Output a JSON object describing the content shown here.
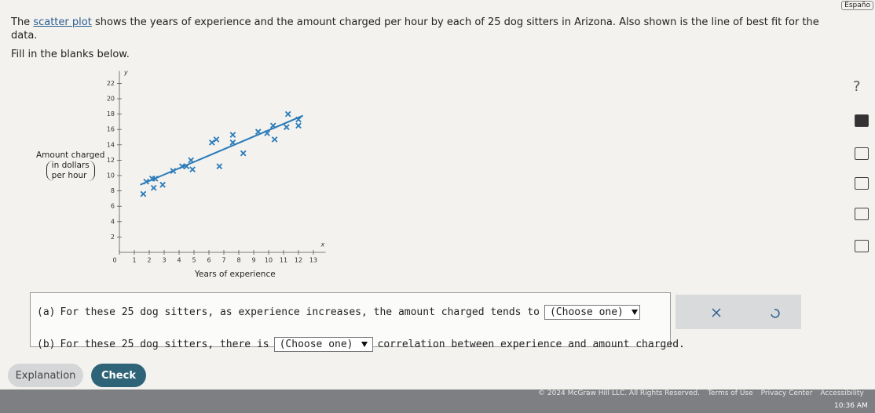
{
  "header": {
    "language_link": "Españo"
  },
  "problem": {
    "intro_start": "The",
    "intro_link": "scatter plot",
    "intro_rest": "shows the years of experience and the amount charged per hour by each of 25 dog sitters in Arizona. Also shown is the line of best fit for the data.",
    "instruction": "Fill in the blanks below."
  },
  "chart": {
    "y_axis_label_lines": [
      "Amount charged",
      "in dollars",
      "per hour"
    ],
    "x_axis_label": "Years of experience",
    "x_axis_letter": "x",
    "y_axis_letter": "y",
    "xlim": [
      0,
      13.5
    ],
    "ylim": [
      0,
      23
    ],
    "xticks": [
      0,
      1,
      2,
      3,
      4,
      5,
      6,
      7,
      8,
      9,
      10,
      11,
      12,
      13
    ],
    "yticks": [
      2,
      4,
      6,
      8,
      10,
      12,
      14,
      16,
      18,
      20,
      22
    ],
    "point_color": "#2b7bb9",
    "x": [
      1.6,
      2.3,
      2.9,
      1.8,
      2.2,
      2.4,
      3.6,
      4.2,
      4.8,
      4.5,
      4.9,
      6.7,
      6.2,
      6.5,
      7.6,
      7.6,
      8.3,
      9.3,
      9.9,
      10.3,
      10.4,
      11.2,
      11.3,
      12,
      12
    ],
    "y": [
      7.6,
      8.4,
      8.8,
      9.2,
      9.6,
      9.6,
      10.6,
      11.2,
      12,
      11.2,
      10.8,
      11.2,
      14.3,
      14.7,
      15.3,
      14.3,
      12.9,
      15.7,
      15.5,
      16.5,
      14.7,
      16.3,
      18,
      17.3,
      16.5
    ],
    "fit_line": {
      "color": "#2b7bb9",
      "x": [
        1.4,
        12.3
      ],
      "y": [
        8.8,
        17.8
      ]
    }
  },
  "questions": [
    {
      "label": "(a)",
      "text": "For these 25 dog sitters, as experience increases, the amount charged tends to",
      "dropdown": "(Choose one)"
    },
    {
      "label": "(b)",
      "text": "For these 25 dog sitters, there is",
      "dropdown": "(Choose one)",
      "text_after": "correlation between experience and amount charged."
    }
  ],
  "sidebar": {
    "help": "?"
  },
  "buttons": {
    "explanation": "Explanation",
    "check": "Check"
  },
  "footer": {
    "copyright": "© 2024 McGraw Hill LLC. All Rights Reserved.",
    "links": [
      "Terms of Use",
      "Privacy Center",
      "Accessibility"
    ],
    "clock": "10:36 AM"
  }
}
